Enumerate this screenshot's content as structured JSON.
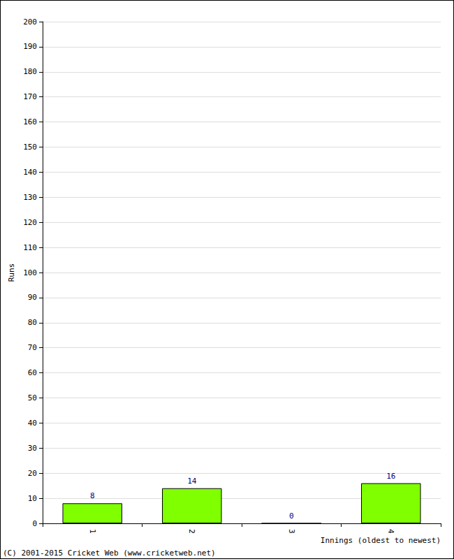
{
  "chart_data": {
    "type": "bar",
    "x_label": "Innings (oldest to newest)",
    "y_label": "Runs",
    "categories": [
      "1",
      "2",
      "3",
      "4"
    ],
    "values": [
      8,
      14,
      0,
      16
    ],
    "color": "#80ff00",
    "ylim": [
      0,
      200
    ],
    "yticks": [
      0,
      10,
      20,
      30,
      40,
      50,
      60,
      70,
      80,
      90,
      100,
      110,
      120,
      130,
      140,
      150,
      160,
      170,
      180,
      190,
      200
    ],
    "grid": true,
    "data_labels": true,
    "annotations": [
      "(C) 2001-2015 Cricket Web (www.cricketweb.net)"
    ]
  }
}
